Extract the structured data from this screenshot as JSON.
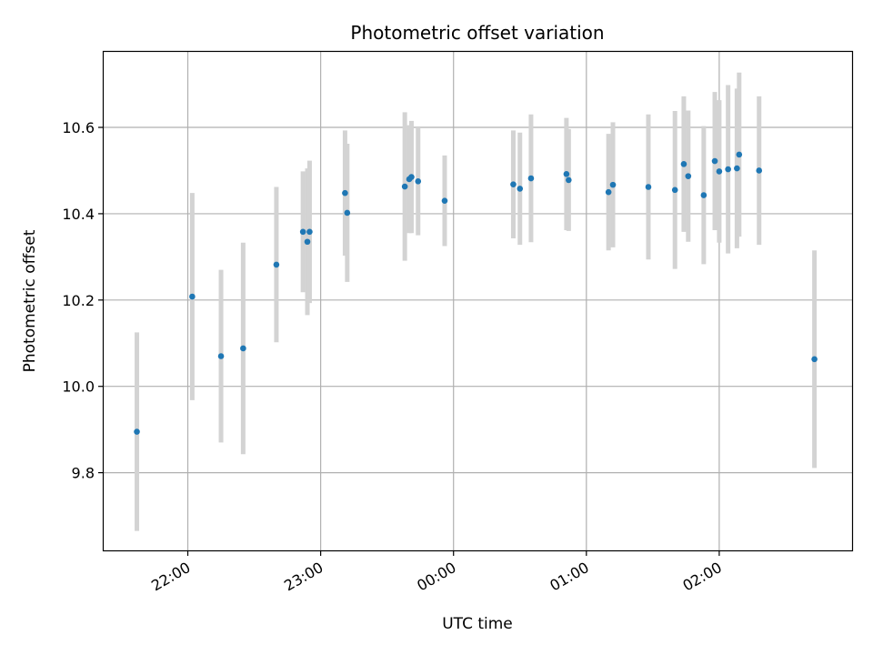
{
  "chart_data": {
    "type": "scatter",
    "title": "Photometric offset variation",
    "xlabel": "UTC time",
    "ylabel": "Photometric offset",
    "x_axis_kind": "time (UTC), spanning midnight",
    "xlim": [
      "21:22",
      "03:00"
    ],
    "ylim": [
      9.62,
      10.775
    ],
    "y_ticks": [
      9.8,
      10.0,
      10.2,
      10.4,
      10.6
    ],
    "y_tick_labels": [
      "9.8",
      "10.0",
      "10.2",
      "10.4",
      "10.6"
    ],
    "x_ticks": [
      "22:00",
      "23:00",
      "00:00",
      "01:00",
      "02:00"
    ],
    "x_tick_labels": [
      "22:00",
      "23:00",
      "00:00",
      "01:00",
      "02:00"
    ],
    "grid": true,
    "marker_color": "#1f77b4",
    "errorbar_color": "#d3d3d3",
    "series": [
      {
        "points": [
          {
            "t": "21:37",
            "y": 9.895,
            "err": 0.23
          },
          {
            "t": "22:02",
            "y": 10.208,
            "err": 0.24
          },
          {
            "t": "22:15",
            "y": 10.07,
            "err": 0.2
          },
          {
            "t": "22:25",
            "y": 10.088,
            "err": 0.245
          },
          {
            "t": "22:40",
            "y": 10.282,
            "err": 0.18
          },
          {
            "t": "22:52",
            "y": 10.358,
            "err": 0.14
          },
          {
            "t": "22:54",
            "y": 10.335,
            "err": 0.17
          },
          {
            "t": "22:55",
            "y": 10.358,
            "err": 0.165
          },
          {
            "t": "23:11",
            "y": 10.448,
            "err": 0.145
          },
          {
            "t": "23:12",
            "y": 10.402,
            "err": 0.16
          },
          {
            "t": "23:38",
            "y": 10.463,
            "err": 0.172
          },
          {
            "t": "23:40",
            "y": 10.48,
            "err": 0.125
          },
          {
            "t": "23:41",
            "y": 10.485,
            "err": 0.13
          },
          {
            "t": "23:44",
            "y": 10.475,
            "err": 0.125
          },
          {
            "t": "23:56",
            "y": 10.43,
            "err": 0.105
          },
          {
            "t": "00:27",
            "y": 10.468,
            "err": 0.125
          },
          {
            "t": "00:30",
            "y": 10.458,
            "err": 0.13
          },
          {
            "t": "00:35",
            "y": 10.482,
            "err": 0.148
          },
          {
            "t": "00:51",
            "y": 10.492,
            "err": 0.13
          },
          {
            "t": "00:52",
            "y": 10.478,
            "err": 0.118
          },
          {
            "t": "01:10",
            "y": 10.45,
            "err": 0.135
          },
          {
            "t": "01:12",
            "y": 10.467,
            "err": 0.145
          },
          {
            "t": "01:28",
            "y": 10.462,
            "err": 0.168
          },
          {
            "t": "01:40",
            "y": 10.455,
            "err": 0.183
          },
          {
            "t": "01:44",
            "y": 10.515,
            "err": 0.157
          },
          {
            "t": "01:46",
            "y": 10.487,
            "err": 0.152
          },
          {
            "t": "01:53",
            "y": 10.443,
            "err": 0.16
          },
          {
            "t": "01:58",
            "y": 10.522,
            "err": 0.16
          },
          {
            "t": "02:00",
            "y": 10.498,
            "err": 0.165
          },
          {
            "t": "02:04",
            "y": 10.503,
            "err": 0.195
          },
          {
            "t": "02:08",
            "y": 10.505,
            "err": 0.185
          },
          {
            "t": "02:09",
            "y": 10.537,
            "err": 0.19
          },
          {
            "t": "02:18",
            "y": 10.5,
            "err": 0.172
          },
          {
            "t": "02:43",
            "y": 10.063,
            "err": 0.252
          }
        ]
      }
    ]
  }
}
